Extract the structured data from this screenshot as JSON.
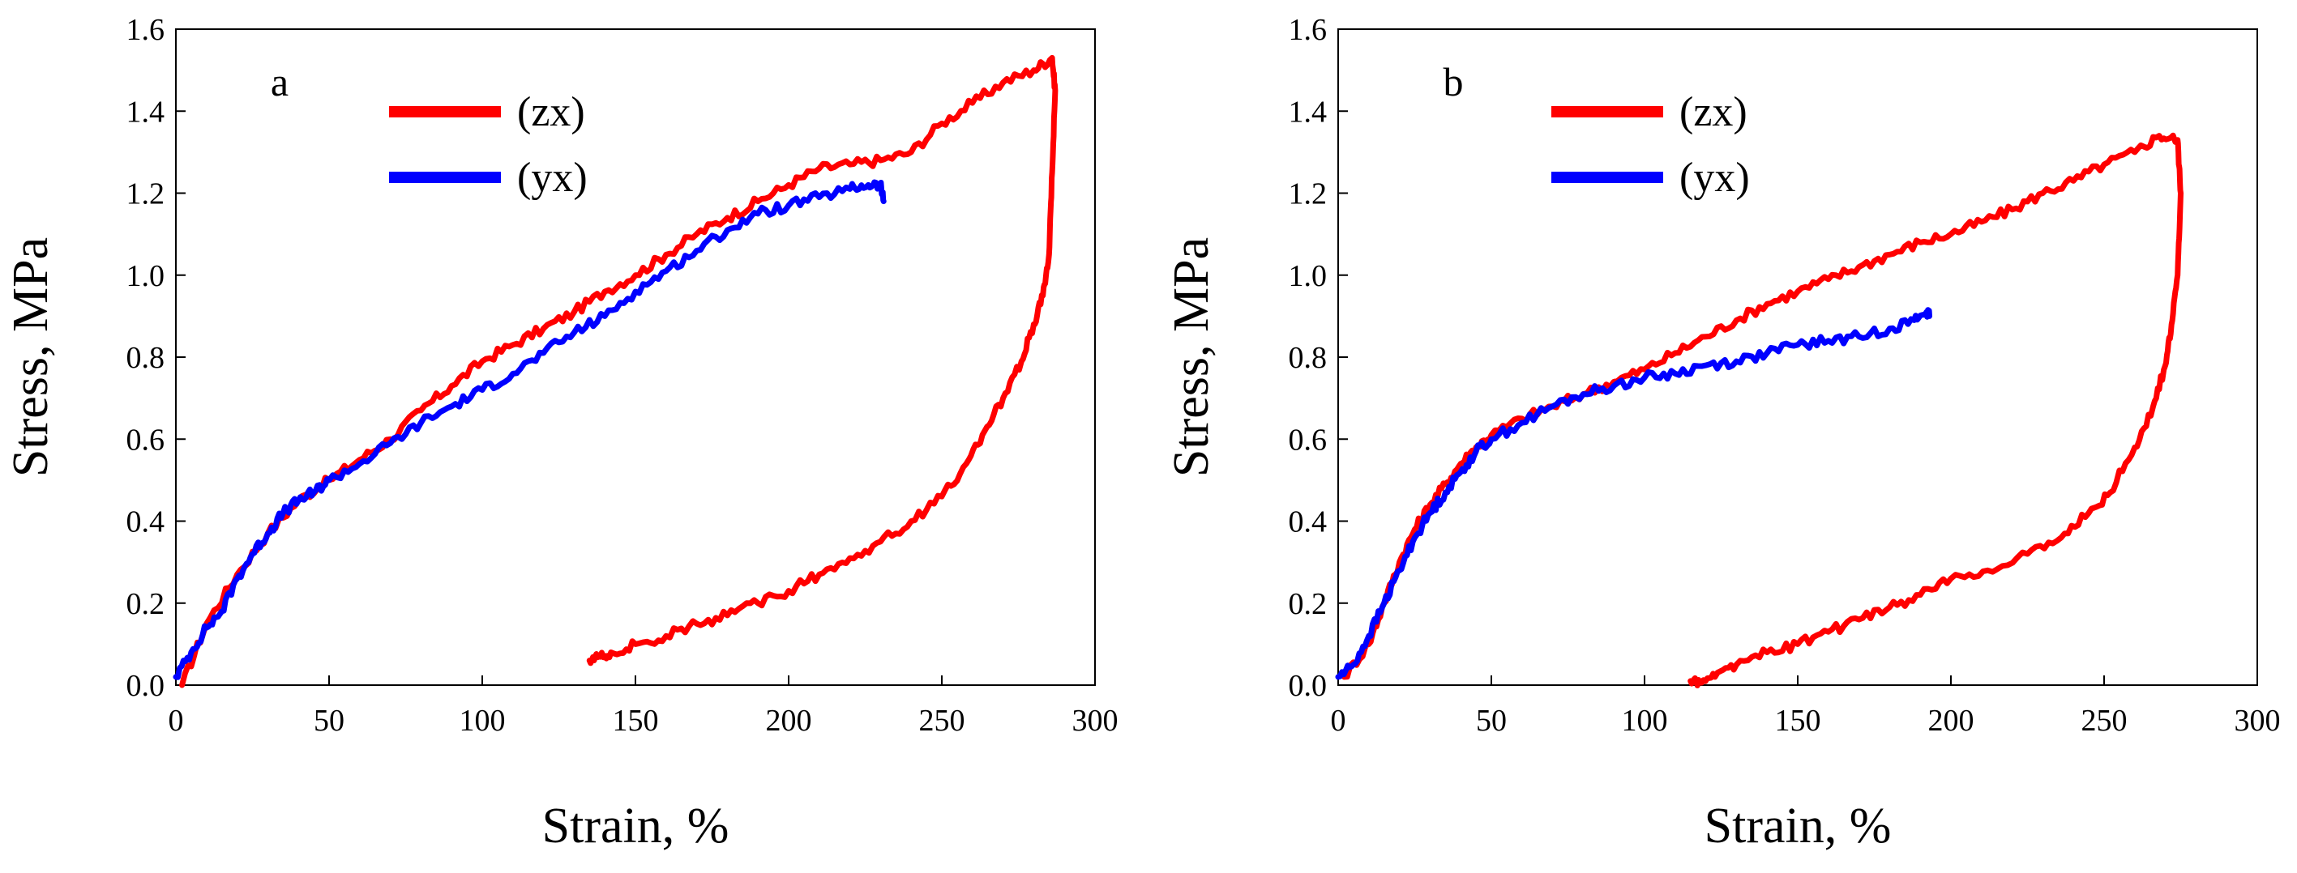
{
  "chart_data": [
    {
      "type": "line",
      "panel_label": "a",
      "xlabel": "Strain, %",
      "ylabel": "Stress, MPa",
      "xlim": [
        0,
        300
      ],
      "ylim": [
        0,
        1.6
      ],
      "xticks": [
        0,
        50,
        100,
        150,
        200,
        250,
        300
      ],
      "yticks": [
        0.0,
        0.2,
        0.4,
        0.6,
        0.8,
        1.0,
        1.2,
        1.4,
        1.6
      ],
      "xtick_labels": [
        "0",
        "50",
        "100",
        "150",
        "200",
        "250",
        "300"
      ],
      "ytick_labels": [
        "0.0",
        "0.2",
        "0.4",
        "0.6",
        "0.8",
        "1.0",
        "1.2",
        "1.4",
        "1.6"
      ],
      "legend_position": "top-center",
      "series": [
        {
          "name": "(zx)",
          "color": "#ff0000",
          "points": [
            [
              2,
              0
            ],
            [
              10,
              0.15
            ],
            [
              20,
              0.27
            ],
            [
              30,
              0.37
            ],
            [
              40,
              0.45
            ],
            [
              50,
              0.5
            ],
            [
              60,
              0.55
            ],
            [
              70,
              0.6
            ],
            [
              80,
              0.67
            ],
            [
              90,
              0.73
            ],
            [
              100,
              0.79
            ],
            [
              110,
              0.83
            ],
            [
              120,
              0.87
            ],
            [
              130,
              0.91
            ],
            [
              140,
              0.96
            ],
            [
              150,
              1.0
            ],
            [
              160,
              1.05
            ],
            [
              170,
              1.1
            ],
            [
              180,
              1.14
            ],
            [
              190,
              1.18
            ],
            [
              200,
              1.22
            ],
            [
              210,
              1.26
            ],
            [
              220,
              1.27
            ],
            [
              230,
              1.28
            ],
            [
              240,
              1.3
            ],
            [
              250,
              1.37
            ],
            [
              260,
              1.42
            ],
            [
              270,
              1.47
            ],
            [
              280,
              1.5
            ],
            [
              286,
              1.53
            ],
            [
              287,
              1.45
            ],
            [
              286,
              1.25
            ],
            [
              285,
              1.05
            ],
            [
              283,
              0.95
            ],
            [
              280,
              0.88
            ],
            [
              276,
              0.79
            ],
            [
              270,
              0.7
            ],
            [
              264,
              0.62
            ],
            [
              258,
              0.54
            ],
            [
              250,
              0.46
            ],
            [
              240,
              0.4
            ],
            [
              230,
              0.35
            ],
            [
              220,
              0.31
            ],
            [
              210,
              0.27
            ],
            [
              200,
              0.23
            ],
            [
              190,
              0.2
            ],
            [
              180,
              0.17
            ],
            [
              170,
              0.15
            ],
            [
              160,
              0.12
            ],
            [
              150,
              0.1
            ],
            [
              142,
              0.08
            ],
            [
              138,
              0.07
            ],
            [
              135,
              0.06
            ]
          ]
        },
        {
          "name": "(yx)",
          "color": "#0000ff",
          "points": [
            [
              0,
              0.02
            ],
            [
              5,
              0.08
            ],
            [
              10,
              0.14
            ],
            [
              15,
              0.18
            ],
            [
              20,
              0.26
            ],
            [
              25,
              0.32
            ],
            [
              30,
              0.37
            ],
            [
              35,
              0.42
            ],
            [
              40,
              0.45
            ],
            [
              45,
              0.47
            ],
            [
              50,
              0.5
            ],
            [
              60,
              0.54
            ],
            [
              70,
              0.59
            ],
            [
              80,
              0.64
            ],
            [
              90,
              0.68
            ],
            [
              100,
              0.72
            ],
            [
              110,
              0.76
            ],
            [
              120,
              0.81
            ],
            [
              130,
              0.86
            ],
            [
              140,
              0.9
            ],
            [
              150,
              0.96
            ],
            [
              160,
              1.01
            ],
            [
              170,
              1.06
            ],
            [
              180,
              1.11
            ],
            [
              190,
              1.15
            ],
            [
              200,
              1.17
            ],
            [
              210,
              1.19
            ],
            [
              220,
              1.21
            ],
            [
              226,
              1.22
            ],
            [
              230,
              1.22
            ],
            [
              231,
              1.18
            ]
          ]
        }
      ]
    },
    {
      "type": "line",
      "panel_label": "b",
      "xlabel": "Strain, %",
      "ylabel": "Stress, MPa",
      "xlim": [
        0,
        300
      ],
      "ylim": [
        0,
        1.6
      ],
      "xticks": [
        0,
        50,
        100,
        150,
        200,
        250,
        300
      ],
      "yticks": [
        0.0,
        0.2,
        0.4,
        0.6,
        0.8,
        1.0,
        1.2,
        1.4,
        1.6
      ],
      "xtick_labels": [
        "0",
        "50",
        "100",
        "150",
        "200",
        "250",
        "300"
      ],
      "ytick_labels": [
        "0.0",
        "0.2",
        "0.4",
        "0.6",
        "0.8",
        "1.0",
        "1.2",
        "1.4",
        "1.6"
      ],
      "legend_position": "top-center",
      "series": [
        {
          "name": "(zx)",
          "color": "#ff0000",
          "points": [
            [
              2,
              0.02
            ],
            [
              10,
              0.1
            ],
            [
              15,
              0.2
            ],
            [
              20,
              0.3
            ],
            [
              25,
              0.38
            ],
            [
              30,
              0.44
            ],
            [
              35,
              0.49
            ],
            [
              40,
              0.54
            ],
            [
              45,
              0.58
            ],
            [
              50,
              0.61
            ],
            [
              60,
              0.65
            ],
            [
              70,
              0.68
            ],
            [
              80,
              0.71
            ],
            [
              90,
              0.74
            ],
            [
              100,
              0.77
            ],
            [
              110,
              0.81
            ],
            [
              120,
              0.85
            ],
            [
              130,
              0.89
            ],
            [
              140,
              0.93
            ],
            [
              150,
              0.96
            ],
            [
              160,
              0.99
            ],
            [
              170,
              1.02
            ],
            [
              180,
              1.05
            ],
            [
              190,
              1.08
            ],
            [
              200,
              1.1
            ],
            [
              210,
              1.13
            ],
            [
              220,
              1.16
            ],
            [
              230,
              1.2
            ],
            [
              240,
              1.23
            ],
            [
              250,
              1.27
            ],
            [
              260,
              1.3
            ],
            [
              268,
              1.34
            ],
            [
              274,
              1.33
            ],
            [
              275,
              1.2
            ],
            [
              274,
              1.0
            ],
            [
              272,
              0.88
            ],
            [
              270,
              0.78
            ],
            [
              266,
              0.68
            ],
            [
              260,
              0.58
            ],
            [
              252,
              0.47
            ],
            [
              245,
              0.42
            ],
            [
              236,
              0.36
            ],
            [
              225,
              0.32
            ],
            [
              212,
              0.28
            ],
            [
              200,
              0.26
            ],
            [
              190,
              0.22
            ],
            [
              180,
              0.19
            ],
            [
              170,
              0.16
            ],
            [
              160,
              0.13
            ],
            [
              150,
              0.1
            ],
            [
              140,
              0.08
            ],
            [
              130,
              0.05
            ],
            [
              123,
              0.02
            ],
            [
              118,
              0.01
            ],
            [
              115,
              0.01
            ]
          ]
        },
        {
          "name": "(yx)",
          "color": "#0000ff",
          "points": [
            [
              0,
              0.02
            ],
            [
              5,
              0.05
            ],
            [
              10,
              0.12
            ],
            [
              15,
              0.2
            ],
            [
              20,
              0.28
            ],
            [
              25,
              0.36
            ],
            [
              30,
              0.42
            ],
            [
              35,
              0.47
            ],
            [
              40,
              0.52
            ],
            [
              45,
              0.57
            ],
            [
              50,
              0.6
            ],
            [
              60,
              0.64
            ],
            [
              70,
              0.68
            ],
            [
              80,
              0.71
            ],
            [
              90,
              0.73
            ],
            [
              100,
              0.75
            ],
            [
              110,
              0.76
            ],
            [
              120,
              0.78
            ],
            [
              130,
              0.79
            ],
            [
              140,
              0.81
            ],
            [
              150,
              0.83
            ],
            [
              160,
              0.84
            ],
            [
              170,
              0.85
            ],
            [
              180,
              0.87
            ],
            [
              188,
              0.89
            ],
            [
              192,
              0.91
            ],
            [
              193,
              0.9
            ]
          ]
        }
      ]
    }
  ]
}
